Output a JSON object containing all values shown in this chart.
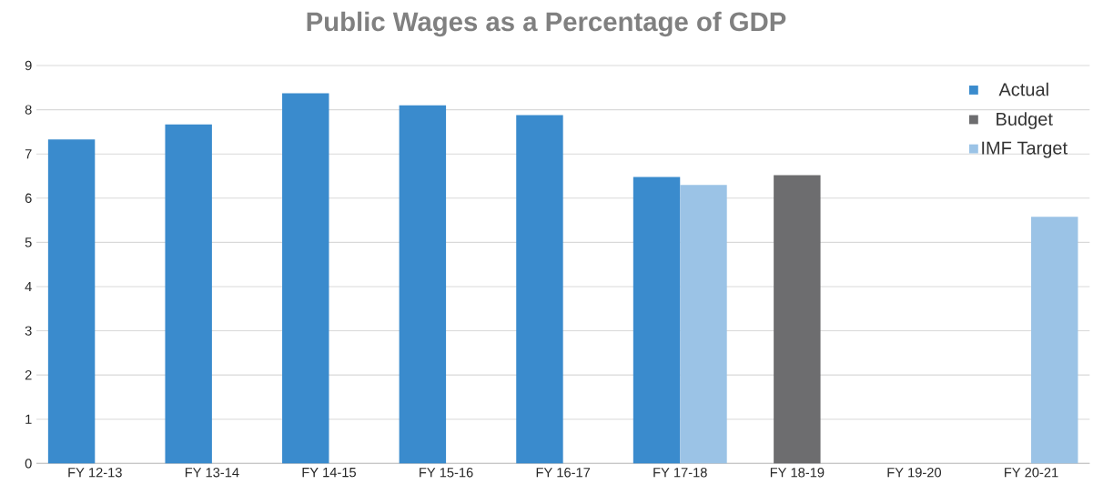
{
  "chart_data": {
    "type": "bar",
    "title": "Public Wages as a Percentage of GDP",
    "categories": [
      "FY 12-13",
      "FY 13-14",
      "FY 14-15",
      "FY 15-16",
      "FY 16-17",
      "FY 17-18",
      "FY 18-19",
      "FY 19-20",
      "FY 20-21"
    ],
    "series": [
      {
        "name": "Actual",
        "color": "#3a8bcd",
        "values": [
          7.33,
          7.67,
          8.37,
          8.1,
          7.88,
          6.48,
          null,
          null,
          null
        ]
      },
      {
        "name": "Budget",
        "color": "#6d6d6f",
        "values": [
          null,
          null,
          null,
          null,
          null,
          null,
          6.52,
          null,
          null
        ]
      },
      {
        "name": "IMF Target",
        "color": "#9bc3e6",
        "values": [
          null,
          null,
          null,
          null,
          null,
          6.3,
          null,
          null,
          5.58
        ]
      }
    ],
    "ylim": [
      0,
      9
    ],
    "yticks": [
      0,
      1,
      2,
      3,
      4,
      5,
      6,
      7,
      8,
      9
    ],
    "grid": "y",
    "legend": "top right",
    "marker": "square"
  }
}
